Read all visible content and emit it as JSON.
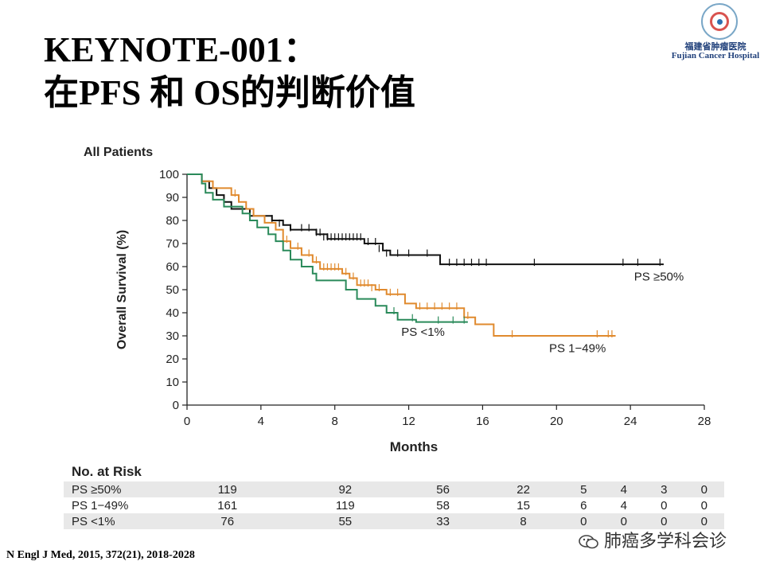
{
  "slide": {
    "title_line1": "KEYNOTE-001：",
    "title_line2": "在PFS 和 OS的判断价值",
    "logo_cn": "福建省肿瘤医院",
    "logo_en": "Fujian Cancer Hospital",
    "citation": "N Engl J Med, 2015, 372(21), 2018-2028",
    "watermark": "肺癌多学科会诊",
    "icon": "wechat-icon"
  },
  "chart_data": {
    "type": "line",
    "subtype": "kaplan-meier",
    "title": "All Patients",
    "xlabel": "Months",
    "ylabel": "Overall Survival (%)",
    "xlim": [
      0,
      28
    ],
    "ylim": [
      0,
      100
    ],
    "xticks": [
      0,
      4,
      8,
      12,
      16,
      20,
      24,
      28
    ],
    "yticks": [
      0,
      10,
      20,
      30,
      40,
      50,
      60,
      70,
      80,
      90,
      100
    ],
    "series": [
      {
        "name": "PS ≥50%",
        "color": "#111111",
        "points": [
          [
            0,
            100
          ],
          [
            0.6,
            100
          ],
          [
            0.8,
            97
          ],
          [
            1.2,
            94
          ],
          [
            1.6,
            91
          ],
          [
            2,
            88
          ],
          [
            2.4,
            85
          ],
          [
            3.2,
            85
          ],
          [
            3.4,
            82
          ],
          [
            4.6,
            80
          ],
          [
            5.2,
            78
          ],
          [
            5.6,
            76
          ],
          [
            6.8,
            76
          ],
          [
            7.0,
            74
          ],
          [
            7.6,
            72
          ],
          [
            9.6,
            70
          ],
          [
            10.6,
            67
          ],
          [
            11.0,
            65
          ],
          [
            13.6,
            65
          ],
          [
            13.7,
            61
          ],
          [
            25.8,
            61
          ]
        ],
        "censors": [
          [
            4.6,
            80
          ],
          [
            5.0,
            78
          ],
          [
            5.6,
            76
          ],
          [
            6.2,
            76
          ],
          [
            6.6,
            76
          ],
          [
            7.0,
            74
          ],
          [
            7.2,
            74
          ],
          [
            7.4,
            72
          ],
          [
            7.6,
            72
          ],
          [
            7.8,
            72
          ],
          [
            8.0,
            72
          ],
          [
            8.2,
            72
          ],
          [
            8.4,
            72
          ],
          [
            8.6,
            72
          ],
          [
            8.8,
            72
          ],
          [
            9.0,
            72
          ],
          [
            9.2,
            72
          ],
          [
            9.4,
            72
          ],
          [
            9.8,
            70
          ],
          [
            10.2,
            70
          ],
          [
            10.4,
            67
          ],
          [
            10.8,
            65
          ],
          [
            11.4,
            65
          ],
          [
            12.0,
            65
          ],
          [
            13.0,
            65
          ],
          [
            14.2,
            61
          ],
          [
            14.6,
            61
          ],
          [
            15.0,
            61
          ],
          [
            15.4,
            61
          ],
          [
            15.8,
            61
          ],
          [
            16.2,
            61
          ],
          [
            18.8,
            61
          ],
          [
            23.6,
            61
          ],
          [
            24.4,
            61
          ],
          [
            25.6,
            61
          ]
        ],
        "label_pos": "right"
      },
      {
        "name": "PS 1−49%",
        "color": "#e08a2e",
        "points": [
          [
            0,
            100
          ],
          [
            0.6,
            100
          ],
          [
            0.8,
            97
          ],
          [
            1.4,
            94
          ],
          [
            2.4,
            91
          ],
          [
            2.8,
            88
          ],
          [
            3.2,
            85
          ],
          [
            3.6,
            82
          ],
          [
            4.2,
            79
          ],
          [
            4.8,
            76
          ],
          [
            5.2,
            71
          ],
          [
            5.6,
            68
          ],
          [
            6.2,
            65
          ],
          [
            6.8,
            62
          ],
          [
            7.2,
            59
          ],
          [
            8.4,
            57
          ],
          [
            8.8,
            55
          ],
          [
            9.2,
            52
          ],
          [
            10.2,
            50
          ],
          [
            10.8,
            48
          ],
          [
            11.8,
            44
          ],
          [
            12.4,
            42
          ],
          [
            15.0,
            38
          ],
          [
            15.6,
            35
          ],
          [
            16.6,
            30
          ],
          [
            23.2,
            30
          ]
        ],
        "censors": [
          [
            2.6,
            91
          ],
          [
            5.4,
            71
          ],
          [
            6.0,
            68
          ],
          [
            6.6,
            65
          ],
          [
            7.0,
            62
          ],
          [
            7.4,
            59
          ],
          [
            7.6,
            59
          ],
          [
            7.8,
            59
          ],
          [
            8.0,
            59
          ],
          [
            8.2,
            59
          ],
          [
            8.6,
            57
          ],
          [
            9.0,
            55
          ],
          [
            9.4,
            52
          ],
          [
            9.6,
            52
          ],
          [
            9.8,
            52
          ],
          [
            10.0,
            50
          ],
          [
            10.4,
            50
          ],
          [
            11.0,
            48
          ],
          [
            11.4,
            48
          ],
          [
            12.6,
            42
          ],
          [
            13.0,
            42
          ],
          [
            13.4,
            42
          ],
          [
            13.8,
            42
          ],
          [
            14.2,
            42
          ],
          [
            14.6,
            42
          ],
          [
            15.2,
            38
          ],
          [
            17.6,
            30
          ],
          [
            22.2,
            30
          ],
          [
            22.8,
            30
          ],
          [
            23.0,
            30
          ]
        ],
        "label_pos": "bottom"
      },
      {
        "name": "PS <1%",
        "color": "#2a8a5a",
        "points": [
          [
            0,
            100
          ],
          [
            0.6,
            100
          ],
          [
            0.8,
            96
          ],
          [
            1.0,
            92
          ],
          [
            1.4,
            89
          ],
          [
            2.0,
            86
          ],
          [
            3.0,
            83
          ],
          [
            3.4,
            80
          ],
          [
            3.8,
            77
          ],
          [
            4.4,
            74
          ],
          [
            4.8,
            71
          ],
          [
            5.2,
            67
          ],
          [
            5.6,
            63
          ],
          [
            6.2,
            60
          ],
          [
            6.8,
            57
          ],
          [
            7.0,
            54
          ],
          [
            8.6,
            50
          ],
          [
            9.2,
            46
          ],
          [
            10.2,
            43
          ],
          [
            10.8,
            40
          ],
          [
            11.4,
            37
          ],
          [
            12.4,
            36
          ],
          [
            15.2,
            36
          ]
        ],
        "censors": [
          [
            11.2,
            40
          ],
          [
            12.2,
            37
          ],
          [
            13.6,
            36
          ],
          [
            14.4,
            36
          ],
          [
            15.0,
            36
          ]
        ],
        "label_pos": "middle"
      }
    ]
  },
  "risk_table": {
    "title": "No. at Risk",
    "rows": [
      {
        "label": "PS ≥50%",
        "values": [
          "119",
          "92",
          "56",
          "22",
          "5",
          "4",
          "3",
          "0"
        ]
      },
      {
        "label": "PS 1−49%",
        "values": [
          "161",
          "119",
          "58",
          "15",
          "6",
          "4",
          "0",
          "0"
        ]
      },
      {
        "label": "PS <1%",
        "values": [
          "76",
          "55",
          "33",
          "8",
          "0",
          "0",
          "0",
          "0"
        ]
      }
    ]
  }
}
